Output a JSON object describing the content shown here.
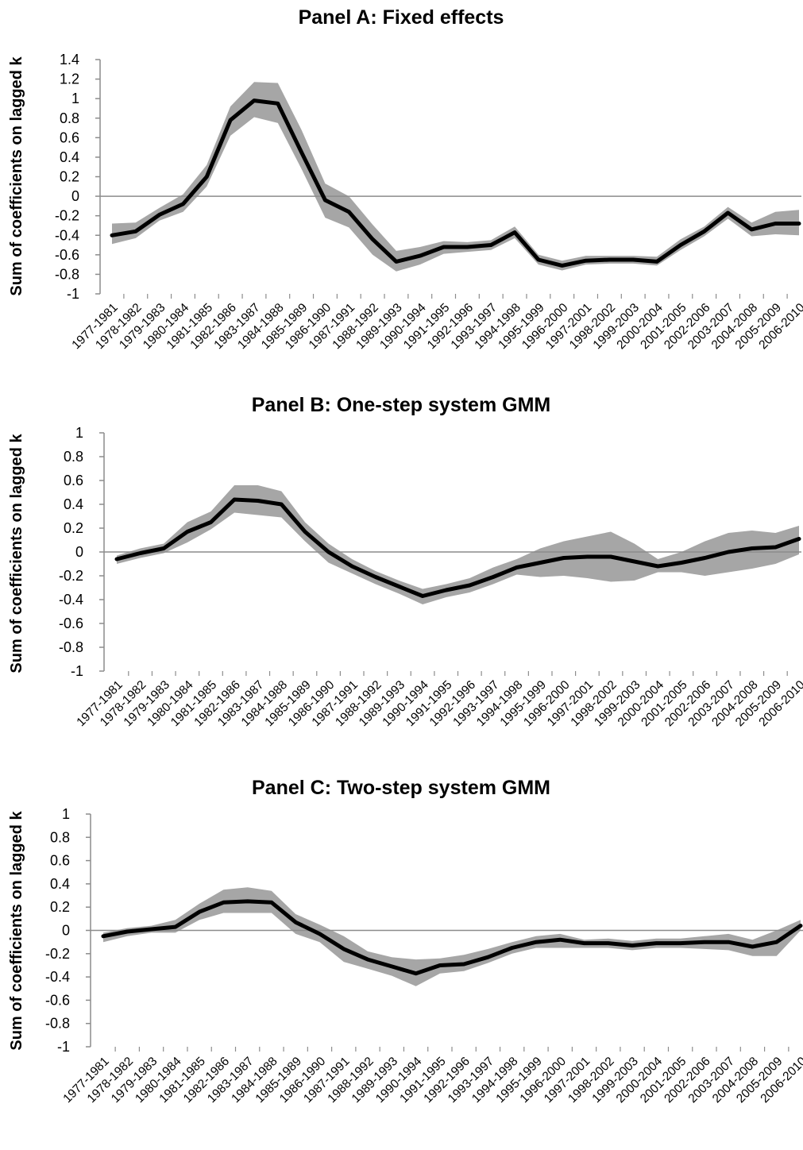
{
  "x_categories": [
    "1977-1981",
    "1978-1982",
    "1979-1983",
    "1980-1984",
    "1981-1985",
    "1982-1986",
    "1983-1987",
    "1984-1988",
    "1985-1989",
    "1986-1990",
    "1987-1991",
    "1988-1992",
    "1989-1993",
    "1990-1994",
    "1991-1995",
    "1992-1996",
    "1993-1997",
    "1994-1998",
    "1995-1999",
    "1996-2000",
    "1997-2001",
    "1998-2002",
    "1999-2003",
    "2000-2004",
    "2001-2005",
    "2002-2006",
    "2003-2007",
    "2004-2008",
    "2005-2009",
    "2006-2010"
  ],
  "chart_data": [
    {
      "type": "line",
      "title": "Panel A: Fixed effects",
      "ylabel": "Sum of coefficients on lagged k",
      "ylim": [
        -1,
        1.4
      ],
      "y_ticks": [
        "1.4",
        "1.2",
        "1",
        "0.8",
        "0.6",
        "0.4",
        "0.2",
        "0",
        "-0.2",
        "-0.4",
        "-0.6",
        "-0.8",
        "-1"
      ],
      "series": [
        {
          "values": [
            -0.4,
            -0.36,
            -0.19,
            -0.08,
            0.2,
            0.78,
            0.98,
            0.95,
            0.45,
            -0.04,
            -0.16,
            -0.44,
            -0.67,
            -0.61,
            -0.52,
            -0.52,
            -0.5,
            -0.37,
            -0.65,
            -0.71,
            -0.66,
            -0.65,
            -0.65,
            -0.67,
            -0.5,
            -0.36,
            -0.17,
            -0.34,
            -0.28,
            -0.28
          ]
        }
      ],
      "band_upper": [
        -0.28,
        -0.27,
        -0.12,
        0.02,
        0.32,
        0.92,
        1.17,
        1.16,
        0.68,
        0.13,
        0.0,
        -0.29,
        -0.56,
        -0.52,
        -0.46,
        -0.47,
        -0.45,
        -0.31,
        -0.6,
        -0.66,
        -0.61,
        -0.61,
        -0.61,
        -0.62,
        -0.44,
        -0.31,
        -0.11,
        -0.27,
        -0.16,
        -0.14
      ],
      "band_lower": [
        -0.49,
        -0.43,
        -0.25,
        -0.16,
        0.1,
        0.62,
        0.81,
        0.75,
        0.28,
        -0.22,
        -0.32,
        -0.6,
        -0.77,
        -0.7,
        -0.59,
        -0.57,
        -0.55,
        -0.43,
        -0.7,
        -0.76,
        -0.7,
        -0.69,
        -0.69,
        -0.71,
        -0.55,
        -0.41,
        -0.23,
        -0.41,
        -0.39,
        -0.4
      ]
    },
    {
      "type": "line",
      "title": "Panel B: One-step system GMM",
      "ylabel": "Sum of coefficients  on lagged  k",
      "ylim": [
        -1,
        1
      ],
      "y_ticks": [
        "1",
        "0.8",
        "0.6",
        "0.4",
        "0.2",
        "0",
        "-0.2",
        "-0.4",
        "-0.6",
        "-0.8",
        "-1"
      ],
      "series": [
        {
          "values": [
            -0.06,
            -0.01,
            0.03,
            0.17,
            0.25,
            0.44,
            0.43,
            0.4,
            0.17,
            0.0,
            -0.12,
            -0.21,
            -0.29,
            -0.37,
            -0.32,
            -0.28,
            -0.21,
            -0.13,
            -0.09,
            -0.05,
            -0.04,
            -0.04,
            -0.08,
            -0.12,
            -0.09,
            -0.05,
            0.0,
            0.03,
            0.04,
            0.11
          ]
        }
      ],
      "band_upper": [
        -0.03,
        0.03,
        0.07,
        0.25,
        0.34,
        0.56,
        0.56,
        0.51,
        0.25,
        0.07,
        -0.06,
        -0.16,
        -0.24,
        -0.31,
        -0.27,
        -0.22,
        -0.13,
        -0.06,
        0.03,
        0.09,
        0.13,
        0.17,
        0.07,
        -0.06,
        0.0,
        0.09,
        0.16,
        0.18,
        0.16,
        0.22
      ],
      "band_lower": [
        -0.1,
        -0.05,
        -0.01,
        0.08,
        0.19,
        0.33,
        0.31,
        0.29,
        0.09,
        -0.09,
        -0.18,
        -0.27,
        -0.35,
        -0.44,
        -0.38,
        -0.34,
        -0.27,
        -0.19,
        -0.21,
        -0.2,
        -0.22,
        -0.25,
        -0.24,
        -0.17,
        -0.17,
        -0.2,
        -0.17,
        -0.14,
        -0.1,
        -0.02
      ]
    },
    {
      "type": "line",
      "title": "Panel C: Two-step system GMM",
      "ylabel": "Sum of coefficients  on lagged  k",
      "ylim": [
        -1,
        1
      ],
      "y_ticks": [
        "1",
        "0.8",
        "0.6",
        "0.4",
        "0.2",
        "0",
        "-0.2",
        "-0.4",
        "-0.6",
        "-0.8",
        "-1"
      ],
      "series": [
        {
          "values": [
            -0.05,
            -0.01,
            0.01,
            0.03,
            0.16,
            0.24,
            0.25,
            0.24,
            0.07,
            -0.03,
            -0.16,
            -0.25,
            -0.31,
            -0.37,
            -0.3,
            -0.29,
            -0.23,
            -0.15,
            -0.1,
            -0.08,
            -0.11,
            -0.11,
            -0.13,
            -0.11,
            -0.11,
            -0.1,
            -0.1,
            -0.14,
            -0.1,
            0.04
          ]
        }
      ],
      "band_upper": [
        -0.02,
        0.02,
        0.04,
        0.09,
        0.23,
        0.35,
        0.37,
        0.34,
        0.14,
        0.05,
        -0.05,
        -0.18,
        -0.23,
        -0.25,
        -0.24,
        -0.21,
        -0.16,
        -0.1,
        -0.05,
        -0.03,
        -0.08,
        -0.07,
        -0.09,
        -0.07,
        -0.07,
        -0.05,
        -0.03,
        -0.08,
        0.0,
        0.09
      ],
      "band_lower": [
        -0.1,
        -0.05,
        -0.02,
        -0.02,
        0.09,
        0.15,
        0.15,
        0.15,
        -0.03,
        -0.1,
        -0.27,
        -0.33,
        -0.39,
        -0.48,
        -0.37,
        -0.35,
        -0.28,
        -0.2,
        -0.15,
        -0.15,
        -0.15,
        -0.15,
        -0.17,
        -0.15,
        -0.15,
        -0.16,
        -0.17,
        -0.22,
        -0.22,
        0.0
      ]
    }
  ]
}
